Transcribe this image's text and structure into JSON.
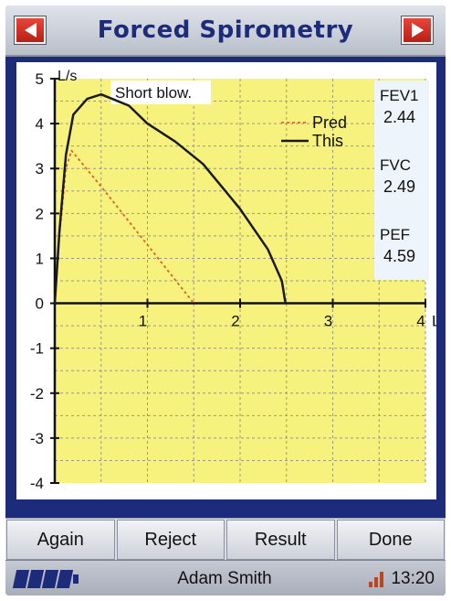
{
  "header": {
    "title": "Forced Spirometry",
    "prev_icon": "left-arrow-icon",
    "next_icon": "right-arrow-icon"
  },
  "results": [
    {
      "label": "FEV1",
      "value": "2.44"
    },
    {
      "label": "FVC",
      "value": "2.49"
    },
    {
      "label": "PEF",
      "value": "4.59"
    }
  ],
  "chart_data": {
    "type": "line",
    "xlabel": "L",
    "ylabel": "L/s",
    "xlim": [
      0,
      4
    ],
    "ylim": [
      -4,
      5
    ],
    "x_ticks": [
      1,
      2,
      3,
      4
    ],
    "y_ticks": [
      5,
      4,
      3,
      2,
      1,
      0,
      -1,
      -2,
      -3,
      -4
    ],
    "grid": true,
    "legend_position": "top-right",
    "annotation": "Short blow.",
    "series": [
      {
        "name": "Pred",
        "style": "dotted",
        "color": "#d9652a",
        "points": [
          [
            0,
            0
          ],
          [
            0.05,
            1.5
          ],
          [
            0.12,
            3.0
          ],
          [
            0.18,
            3.4
          ],
          [
            0.5,
            2.6
          ],
          [
            1.0,
            1.3
          ],
          [
            1.5,
            0.0
          ]
        ]
      },
      {
        "name": "This",
        "style": "solid",
        "color": "#1a1a1a",
        "points": [
          [
            0,
            0
          ],
          [
            0.05,
            1.6
          ],
          [
            0.12,
            3.3
          ],
          [
            0.2,
            4.2
          ],
          [
            0.35,
            4.55
          ],
          [
            0.5,
            4.65
          ],
          [
            0.8,
            4.4
          ],
          [
            1.0,
            4.0
          ],
          [
            1.3,
            3.6
          ],
          [
            1.6,
            3.1
          ],
          [
            2.0,
            2.1
          ],
          [
            2.3,
            1.2
          ],
          [
            2.45,
            0.5
          ],
          [
            2.49,
            0.0
          ]
        ]
      }
    ]
  },
  "buttons": {
    "again": "Again",
    "reject": "Reject",
    "result": "Result",
    "done": "Done"
  },
  "status": {
    "user": "Adam Smith",
    "time": "13:20",
    "battery_icon": "battery-icon",
    "signal_icon": "signal-icon"
  }
}
